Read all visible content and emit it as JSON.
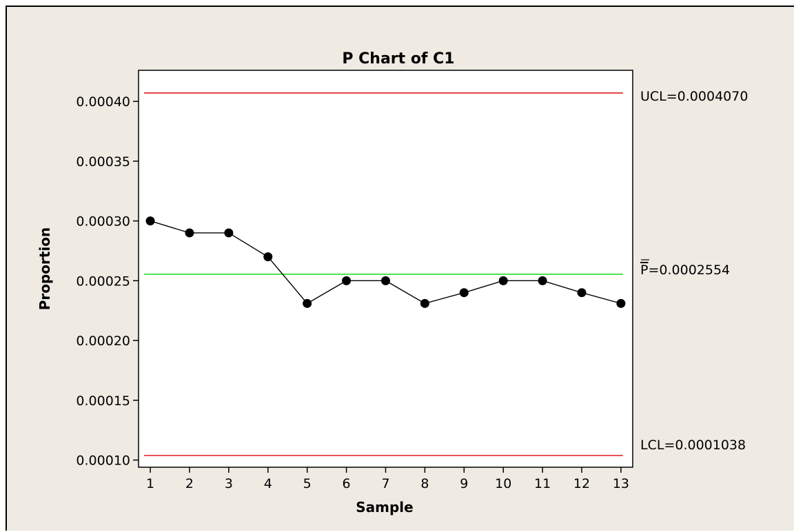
{
  "chart_data": {
    "type": "line",
    "title": "P Chart of C1",
    "xlabel": "Sample",
    "ylabel": "Proportion",
    "x": [
      1,
      2,
      3,
      4,
      5,
      6,
      7,
      8,
      9,
      10,
      11,
      12,
      13
    ],
    "x_ticks": [
      "1",
      "2",
      "3",
      "4",
      "5",
      "6",
      "7",
      "8",
      "9",
      "10",
      "11",
      "12",
      "13"
    ],
    "values": [
      0.0003,
      0.00029,
      0.00029,
      0.00027,
      0.000231,
      0.00025,
      0.00025,
      0.000231,
      0.00024,
      0.00025,
      0.00025,
      0.00024,
      0.000231
    ],
    "y_ticks": [
      0.0001,
      0.00015,
      0.0002,
      0.00025,
      0.0003,
      0.00035,
      0.0004
    ],
    "y_tick_labels": [
      "0.00010",
      "0.00015",
      "0.00020",
      "0.00025",
      "0.00030",
      "0.00035",
      "0.00040"
    ],
    "ylim": [
      9.4e-05,
      0.000426
    ],
    "xlim": [
      0.7,
      13.3
    ],
    "grid": false,
    "control_limits": {
      "ucl": {
        "value": 0.000407,
        "label": "UCL=0.0004070",
        "color": "#e0191e"
      },
      "center": {
        "value": 0.0002554,
        "label_symbol": "P",
        "label_value": "=0.0002554",
        "color": "#22dd22"
      },
      "lcl": {
        "value": 0.0001038,
        "label": "LCL=0.0001038",
        "color": "#e0191e"
      }
    },
    "series_color": "#000000",
    "frame_background": "#efebe3",
    "plot_background": "#ffffff"
  }
}
